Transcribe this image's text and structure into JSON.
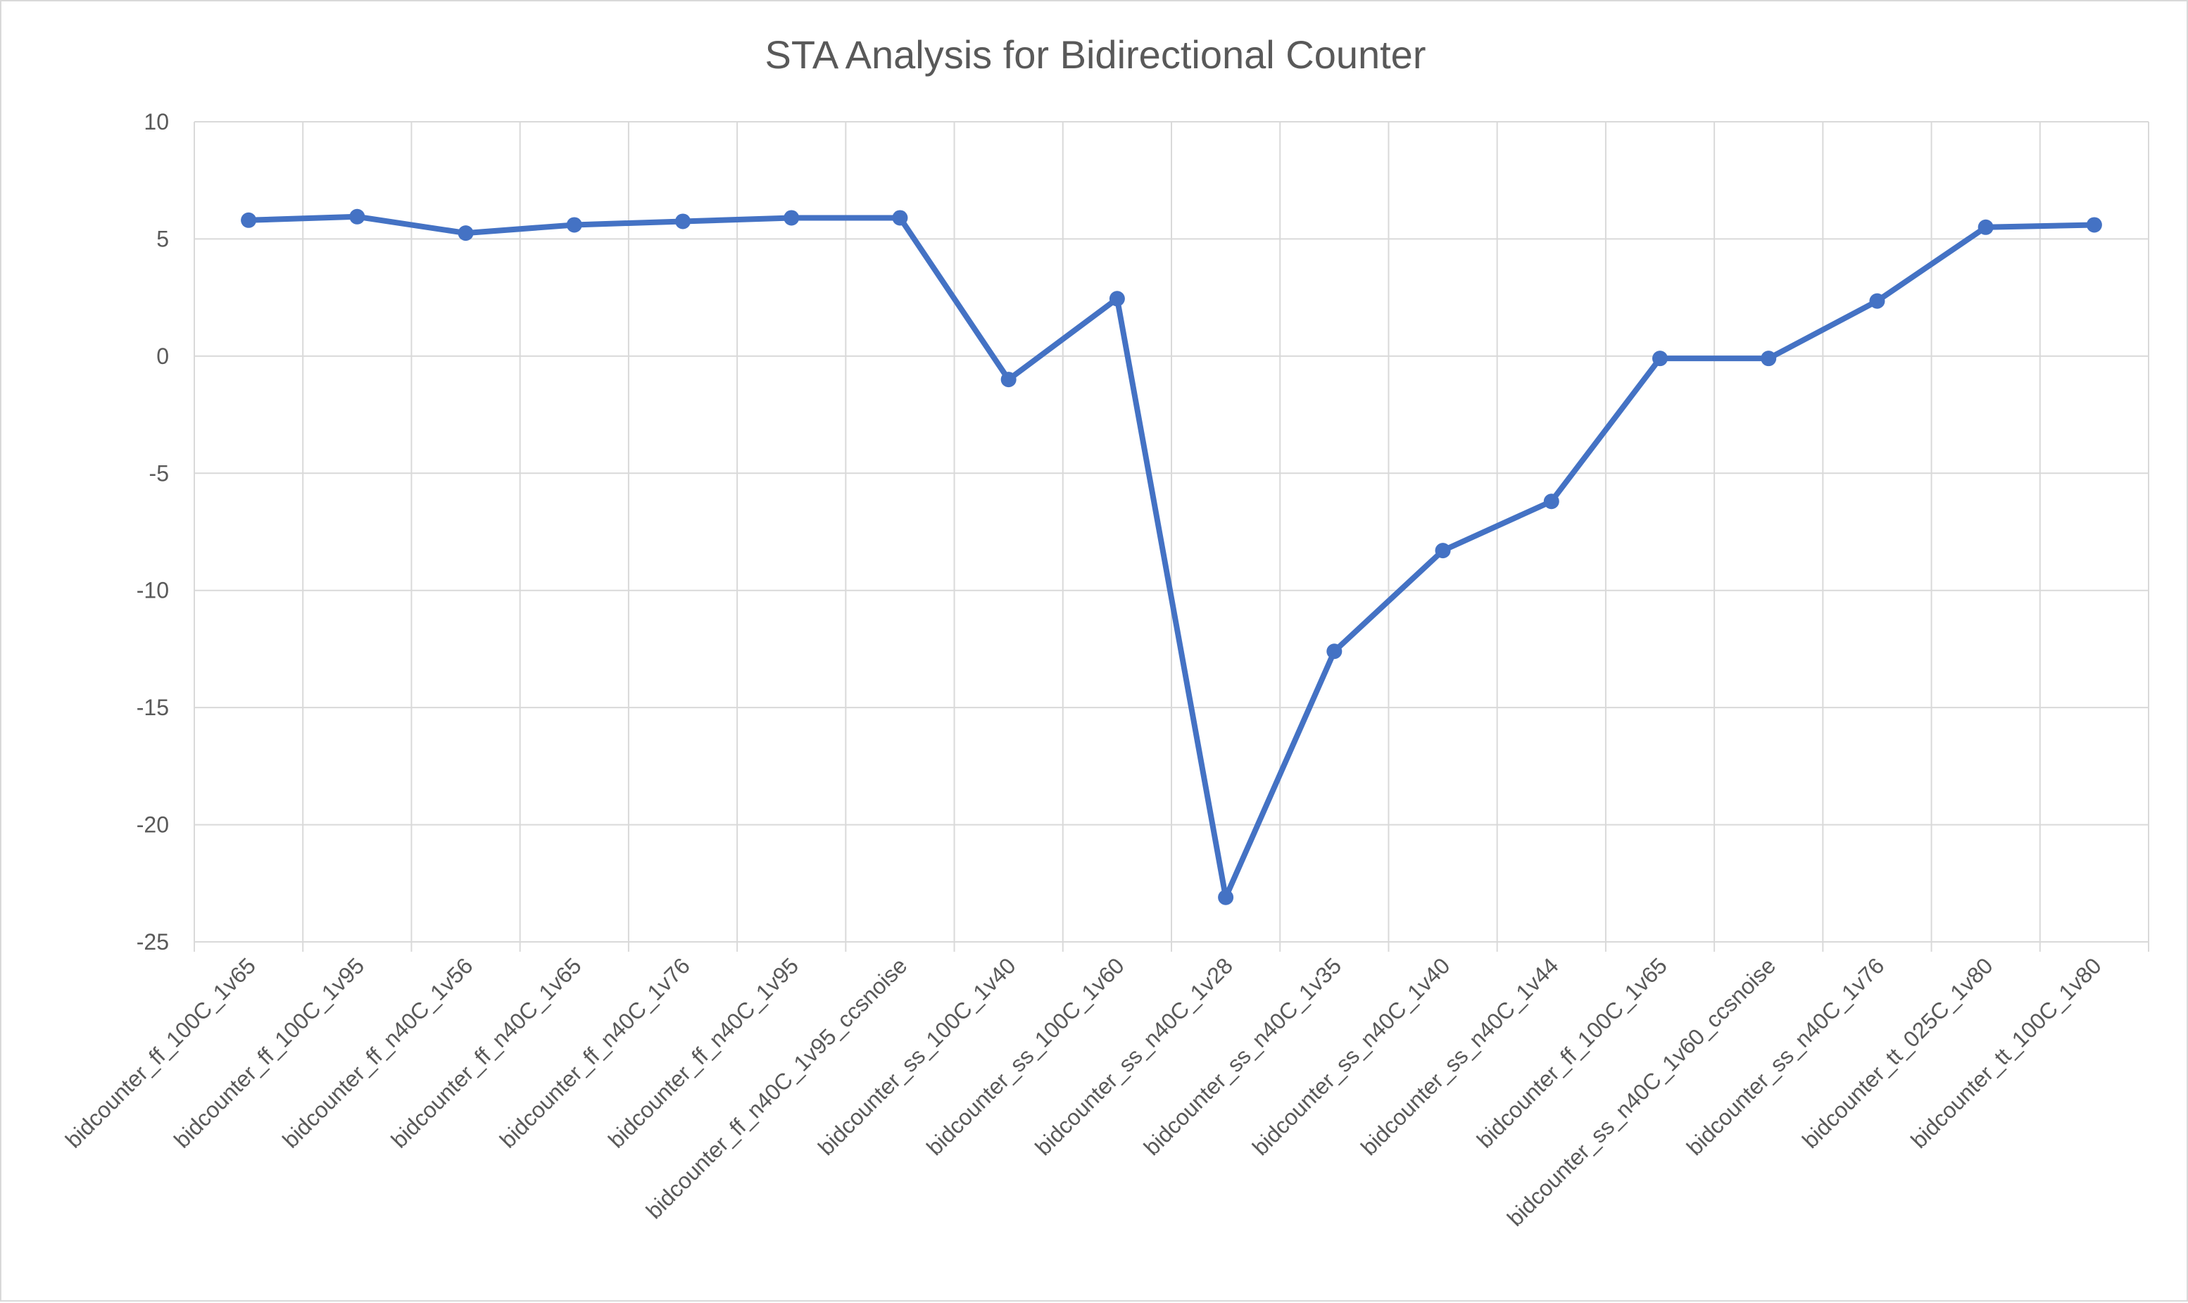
{
  "chart_data": {
    "type": "line",
    "title": "STA Analysis for Bidirectional Counter",
    "xlabel": "",
    "ylabel": "",
    "ylim": [
      -25,
      10
    ],
    "y_ticks": [
      10,
      5,
      0,
      -5,
      -10,
      -15,
      -20,
      -25
    ],
    "grid": true,
    "legend": "none",
    "categories": [
      "bidcounter_ff_100C_1v65",
      "bidcounter_ff_100C_1v95",
      "bidcounter_ff_n40C_1v56",
      "bidcounter_ff_n40C_1v65",
      "bidcounter_ff_n40C_1v76",
      "bidcounter_ff_n40C_1v95",
      "bidcounter_ff_n40C_1v95_ccsnoise",
      "bidcounter_ss_100C_1v40",
      "bidcounter_ss_100C_1v60",
      "bidcounter_ss_n40C_1v28",
      "bidcounter_ss_n40C_1v35",
      "bidcounter_ss_n40C_1v40",
      "bidcounter_ss_n40C_1v44",
      "bidcounter_ff_100C_1v65",
      "bidcounter_ss_n40C_1v60_ccsnoise",
      "bidcounter_ss_n40C_1v76",
      "bidcounter_tt_025C_1v80",
      "bidcounter_tt_100C_1v80"
    ],
    "series": [
      {
        "color": "#4472c4",
        "values": [
          5.8,
          5.95,
          5.25,
          5.6,
          5.75,
          5.9,
          5.9,
          -1.0,
          2.45,
          -23.1,
          -12.6,
          -8.3,
          -6.2,
          -0.1,
          -0.1,
          2.35,
          5.5,
          5.6
        ]
      }
    ]
  }
}
